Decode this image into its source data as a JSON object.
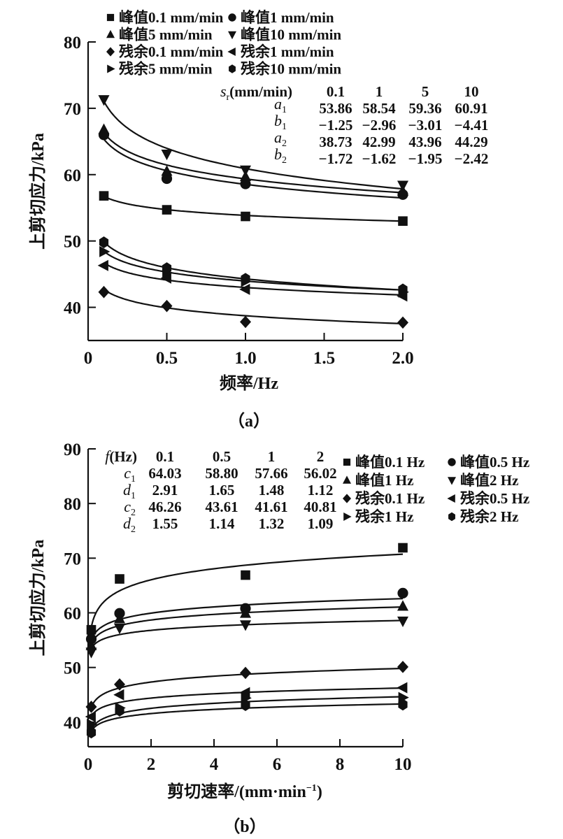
{
  "chart_data": [
    {
      "panel": "a",
      "type": "scatter",
      "caption": "（a）",
      "xlabel": "频率/Hz",
      "ylabel": "上剪切应力/kPa",
      "xlim": [
        0,
        2.0
      ],
      "ylim": [
        35,
        80
      ],
      "xticks": [
        "0",
        "0.5",
        "1.0",
        "1.5",
        "2.0"
      ],
      "xtick_values": [
        0,
        0.5,
        1.0,
        1.5,
        2.0
      ],
      "yticks": [
        "40",
        "50",
        "60",
        "70",
        "80"
      ],
      "ytick_values": [
        40,
        50,
        60,
        70,
        80
      ],
      "grid": false,
      "legend_position": "top",
      "x": [
        0.1,
        0.5,
        1.0,
        2.0
      ],
      "fit_model": "a + b·ln(f)",
      "series": [
        {
          "name": "峰值0.1 mm/min",
          "marker": "square",
          "values": [
            56.8,
            54.7,
            53.7,
            53.0
          ],
          "fit": {
            "a": 53.86,
            "b": -1.25
          }
        },
        {
          "name": "峰值1 mm/min",
          "marker": "circle",
          "values": [
            66.0,
            59.4,
            58.6,
            57.0
          ],
          "fit": {
            "a": 58.54,
            "b": -2.96
          }
        },
        {
          "name": "峰值5 mm/min",
          "marker": "triangle-up",
          "values": [
            66.8,
            60.5,
            59.7,
            57.5
          ],
          "fit": {
            "a": 59.36,
            "b": -3.01
          }
        },
        {
          "name": "峰值10 mm/min",
          "marker": "triangle-down",
          "values": [
            71.3,
            63.1,
            60.7,
            58.4
          ],
          "fit": {
            "a": 60.91,
            "b": -4.41
          }
        },
        {
          "name": "残余0.1 mm/min",
          "marker": "diamond",
          "values": [
            42.3,
            40.2,
            37.8,
            37.7
          ],
          "fit": {
            "a": 38.73,
            "b": -1.72
          }
        },
        {
          "name": "残余1 mm/min",
          "marker": "triangle-left",
          "values": [
            46.3,
            44.4,
            42.7,
            41.7
          ],
          "fit": {
            "a": 42.99,
            "b": -1.62
          }
        },
        {
          "name": "残余5 mm/min",
          "marker": "triangle-right",
          "values": [
            48.4,
            45.2,
            43.9,
            42.3
          ],
          "fit": {
            "a": 43.96,
            "b": -1.95
          }
        },
        {
          "name": "残余10 mm/min",
          "marker": "hexagon",
          "values": [
            49.8,
            45.9,
            44.3,
            42.7
          ],
          "fit": {
            "a": 44.29,
            "b": -2.42
          }
        }
      ],
      "table": {
        "header_label": "s",
        "header_sub": "r",
        "header_unit": "(mm/min)",
        "columns": [
          "0.1",
          "1",
          "5",
          "10"
        ],
        "rows": [
          {
            "sym": "a",
            "sub": "1",
            "values": [
              "53.86",
              "58.54",
              "59.36",
              "60.91"
            ]
          },
          {
            "sym": "b",
            "sub": "1",
            "values": [
              "−1.25",
              "−2.96",
              "−3.01",
              "−4.41"
            ]
          },
          {
            "sym": "a",
            "sub": "2",
            "values": [
              "38.73",
              "42.99",
              "43.96",
              "44.29"
            ]
          },
          {
            "sym": "b",
            "sub": "2",
            "values": [
              "−1.72",
              "−1.62",
              "−1.95",
              "−2.42"
            ]
          }
        ]
      }
    },
    {
      "panel": "b",
      "type": "scatter",
      "caption": "（b）",
      "xlabel": "剪切速率/(mm·min",
      "xlabel_sup": "−1",
      "xlabel_end": ")",
      "ylabel": "上剪切应力/kPa",
      "xlim": [
        0,
        10
      ],
      "ylim": [
        35.5,
        90
      ],
      "xticks": [
        "0",
        "2",
        "4",
        "6",
        "8",
        "10"
      ],
      "xtick_values": [
        0,
        2,
        4,
        6,
        8,
        10
      ],
      "yticks": [
        "40",
        "50",
        "60",
        "70",
        "80",
        "90"
      ],
      "ytick_values": [
        40,
        50,
        60,
        70,
        80,
        90
      ],
      "grid": false,
      "legend_position": "top-right",
      "x": [
        0.1,
        1,
        5,
        10
      ],
      "fit_model": "c + d·ln(s)",
      "series": [
        {
          "name": "峰值0.1 Hz",
          "marker": "square",
          "values": [
            56.9,
            66.2,
            66.9,
            71.9
          ],
          "fit": {
            "a": 64.03,
            "b": 2.91
          }
        },
        {
          "name": "峰值0.5 Hz",
          "marker": "circle",
          "values": [
            55.2,
            59.9,
            60.8,
            63.6
          ],
          "fit": {
            "a": 58.8,
            "b": 1.65
          }
        },
        {
          "name": "峰值1 Hz",
          "marker": "triangle-up",
          "values": [
            54.0,
            58.9,
            59.9,
            61.2
          ],
          "fit": {
            "a": 57.66,
            "b": 1.48
          }
        },
        {
          "name": "峰值2 Hz",
          "marker": "triangle-down",
          "values": [
            52.8,
            57.2,
            57.8,
            58.5
          ],
          "fit": {
            "a": 56.02,
            "b": 1.12
          }
        },
        {
          "name": "残余0.1 Hz",
          "marker": "diamond",
          "values": [
            42.8,
            46.9,
            49.0,
            50.1
          ],
          "fit": {
            "a": 46.26,
            "b": 1.55
          }
        },
        {
          "name": "残余0.5 Hz",
          "marker": "triangle-left",
          "values": [
            41.0,
            45.0,
            45.4,
            46.3
          ],
          "fit": {
            "a": 43.61,
            "b": 1.14
          }
        },
        {
          "name": "残余1 Hz",
          "marker": "triangle-right",
          "values": [
            39.6,
            42.6,
            44.4,
            44.5
          ],
          "fit": {
            "a": 41.61,
            "b": 1.32
          }
        },
        {
          "name": "残余2 Hz",
          "marker": "hexagon",
          "values": [
            38.1,
            42.1,
            43.1,
            43.2
          ],
          "fit": {
            "a": 40.81,
            "b": 1.09
          }
        }
      ],
      "table": {
        "header_label": "f",
        "header_unit": "(Hz)",
        "columns": [
          "0.1",
          "0.5",
          "1",
          "2"
        ],
        "rows": [
          {
            "sym": "c",
            "sub": "1",
            "values": [
              "64.03",
              "58.80",
              "57.66",
              "56.02"
            ]
          },
          {
            "sym": "d",
            "sub": "1",
            "values": [
              "2.91",
              "1.65",
              "1.48",
              "1.12"
            ]
          },
          {
            "sym": "c",
            "sub": "2",
            "values": [
              "46.26",
              "43.61",
              "41.61",
              "40.81"
            ]
          },
          {
            "sym": "d",
            "sub": "2",
            "values": [
              "1.55",
              "1.14",
              "1.32",
              "1.09"
            ]
          }
        ]
      }
    }
  ],
  "colors": {
    "ink": "#111111",
    "background": "#ffffff"
  }
}
